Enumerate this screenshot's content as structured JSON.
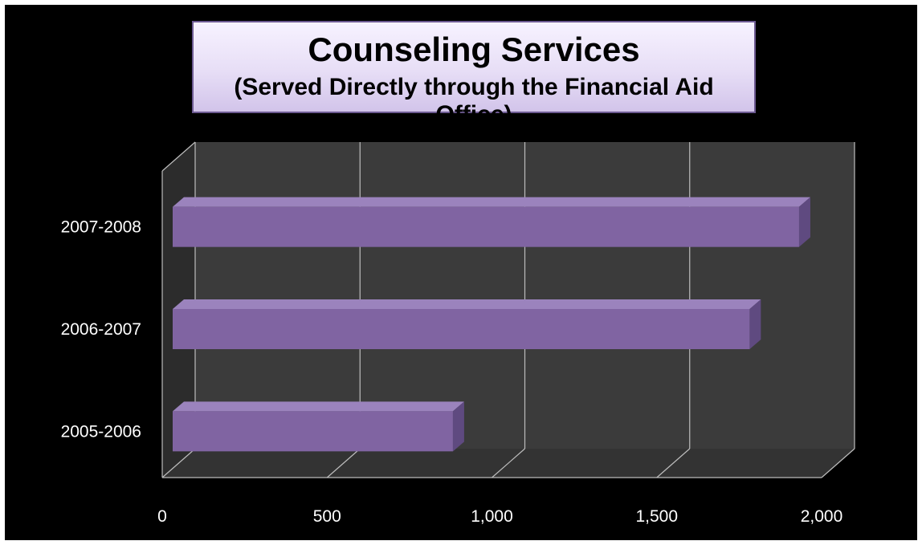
{
  "chart_data": {
    "type": "bar",
    "orientation": "horizontal",
    "style": "3d",
    "title": "Counseling Services",
    "subtitle": "(Served Directly through the Financial Aid Office)",
    "categories": [
      "2005-2006",
      "2006-2007",
      "2007-2008"
    ],
    "values": [
      850,
      1750,
      1900
    ],
    "xlim": [
      0,
      2000
    ],
    "xticks": [
      0,
      500,
      1000,
      1500,
      2000
    ],
    "xtick_labels": [
      "0",
      "500",
      "1,000",
      "1,500",
      "2,000"
    ],
    "grid": true,
    "legend": "none",
    "colors": {
      "bar_front": "#8064a2",
      "bar_top": "#9b83bd",
      "bar_side": "#5f4a80",
      "wall": "#3b3b3b",
      "side_wall": "#2c2c2c",
      "floor": "#333333",
      "gridline": "#bdbdbd",
      "background": "#000000"
    }
  }
}
